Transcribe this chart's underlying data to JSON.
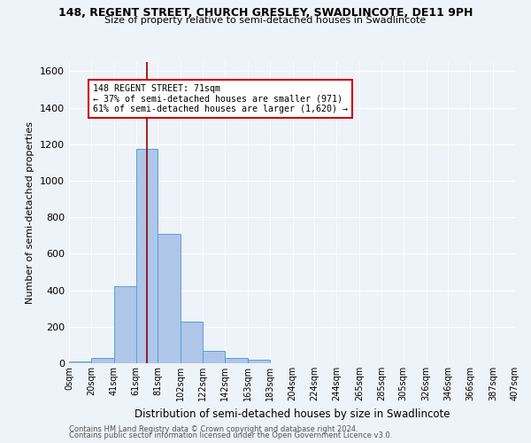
{
  "title": "148, REGENT STREET, CHURCH GRESLEY, SWADLINCOTE, DE11 9PH",
  "subtitle": "Size of property relative to semi-detached houses in Swadlincote",
  "xlabel": "Distribution of semi-detached houses by size in Swadlincote",
  "ylabel": "Number of semi-detached properties",
  "footer1": "Contains HM Land Registry data © Crown copyright and database right 2024.",
  "footer2": "Contains public sector information licensed under the Open Government Licence v3.0.",
  "property_size": 71,
  "property_label": "148 REGENT STREET: 71sqm",
  "pct_smaller": 37,
  "pct_larger": 61,
  "n_smaller": 971,
  "n_larger": 1620,
  "bin_edges": [
    0,
    20,
    41,
    61,
    81,
    102,
    122,
    142,
    163,
    183,
    204,
    224,
    244,
    265,
    285,
    305,
    326,
    346,
    366,
    387,
    407
  ],
  "bin_labels": [
    "0sqm",
    "20sqm",
    "41sqm",
    "61sqm",
    "81sqm",
    "102sqm",
    "122sqm",
    "142sqm",
    "163sqm",
    "183sqm",
    "204sqm",
    "224sqm",
    "244sqm",
    "265sqm",
    "285sqm",
    "305sqm",
    "326sqm",
    "346sqm",
    "366sqm",
    "387sqm",
    "407sqm"
  ],
  "counts": [
    10,
    28,
    420,
    1175,
    710,
    228,
    68,
    28,
    18,
    0,
    0,
    0,
    0,
    0,
    0,
    0,
    0,
    0,
    0,
    0
  ],
  "bar_color": "#aec6e8",
  "bar_edge_color": "#5a9fd4",
  "vline_color": "#8b0000",
  "annotation_box_color": "#ffffff",
  "annotation_border_color": "#cc0000",
  "bg_color": "#eef2f9",
  "ylim": [
    0,
    1650
  ],
  "yticks": [
    0,
    200,
    400,
    600,
    800,
    1000,
    1200,
    1400,
    1600
  ]
}
